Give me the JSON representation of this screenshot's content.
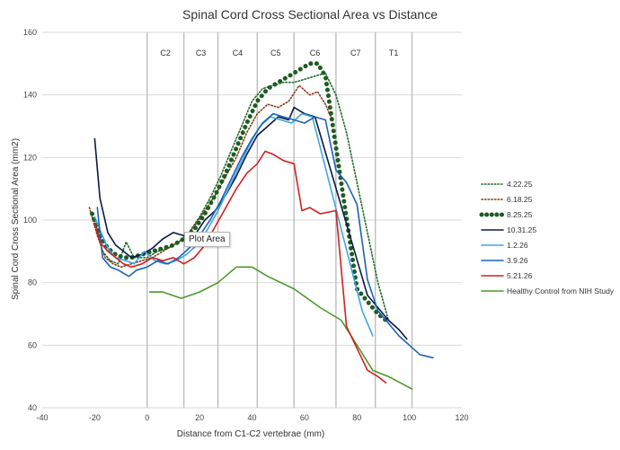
{
  "chart_data": {
    "type": "line",
    "title": "Spinal Cord Cross Sectional Area vs Distance",
    "xlabel": "Distance from C1-C2 vertebrae (mm)",
    "ylabel": "Spinal Cord Cross Sectional Area (mm2)",
    "xlim": [
      -40,
      120
    ],
    "ylim": [
      40,
      160
    ],
    "xticks": [
      -40,
      -20,
      0,
      20,
      40,
      60,
      80,
      100,
      120
    ],
    "yticks": [
      40,
      60,
      80,
      100,
      120,
      140,
      160
    ],
    "legend_position": "right",
    "regions": [
      {
        "label": "C2",
        "start": 0,
        "end": 14
      },
      {
        "label": "C3",
        "start": 14,
        "end": 27
      },
      {
        "label": "C4",
        "start": 27,
        "end": 42
      },
      {
        "label": "C5",
        "start": 42,
        "end": 56
      },
      {
        "label": "C6",
        "start": 56,
        "end": 72
      },
      {
        "label": "C7",
        "start": 72,
        "end": 87
      },
      {
        "label": "T1",
        "start": 87,
        "end": 101
      }
    ],
    "series": [
      {
        "name": "4.22.25",
        "color": "#1f6b2a",
        "style": "dotted",
        "points": [
          [
            -20,
            100
          ],
          [
            -17,
            90
          ],
          [
            -14,
            87
          ],
          [
            -11,
            86
          ],
          [
            -8,
            93
          ],
          [
            -5,
            88
          ],
          [
            0,
            88
          ],
          [
            4,
            90
          ],
          [
            8,
            91
          ],
          [
            12,
            93
          ],
          [
            16,
            96
          ],
          [
            20,
            101
          ],
          [
            24,
            107
          ],
          [
            28,
            114
          ],
          [
            32,
            122
          ],
          [
            36,
            130
          ],
          [
            40,
            138
          ],
          [
            44,
            142
          ],
          [
            48,
            143
          ],
          [
            52,
            144
          ],
          [
            56,
            144
          ],
          [
            60,
            145
          ],
          [
            64,
            146
          ],
          [
            68,
            147
          ],
          [
            72,
            140
          ],
          [
            76,
            128
          ],
          [
            80,
            112
          ],
          [
            84,
            96
          ],
          [
            88,
            80
          ],
          [
            92,
            68
          ]
        ]
      },
      {
        "name": "6.18.25",
        "color": "#8b3a1a",
        "style": "dotted",
        "points": [
          [
            -22,
            104
          ],
          [
            -19,
            95
          ],
          [
            -16,
            88
          ],
          [
            -13,
            86
          ],
          [
            -10,
            85
          ],
          [
            -6,
            86
          ],
          [
            -2,
            87
          ],
          [
            2,
            88
          ],
          [
            6,
            90
          ],
          [
            10,
            92
          ],
          [
            14,
            94
          ],
          [
            18,
            98
          ],
          [
            22,
            103
          ],
          [
            26,
            108
          ],
          [
            30,
            114
          ],
          [
            34,
            120
          ],
          [
            38,
            128
          ],
          [
            42,
            134
          ],
          [
            46,
            137
          ],
          [
            50,
            136
          ],
          [
            54,
            138
          ],
          [
            58,
            143
          ],
          [
            62,
            140
          ],
          [
            65,
            141
          ],
          [
            68,
            137
          ],
          [
            70,
            133
          ]
        ]
      },
      {
        "name": "8.25.25",
        "color": "#1e5c23",
        "style": "bigdots",
        "points": [
          [
            -21,
            102
          ],
          [
            -18,
            95
          ],
          [
            -15,
            91
          ],
          [
            -12,
            89
          ],
          [
            -9,
            88
          ],
          [
            -6,
            88
          ],
          [
            -2,
            89
          ],
          [
            2,
            90
          ],
          [
            6,
            91
          ],
          [
            10,
            92
          ],
          [
            14,
            94
          ],
          [
            18,
            97
          ],
          [
            22,
            102
          ],
          [
            26,
            108
          ],
          [
            30,
            115
          ],
          [
            34,
            123
          ],
          [
            38,
            131
          ],
          [
            42,
            138
          ],
          [
            46,
            142
          ],
          [
            50,
            144
          ],
          [
            54,
            146
          ],
          [
            58,
            148
          ],
          [
            62,
            150
          ],
          [
            65,
            150
          ],
          [
            68,
            146
          ],
          [
            80,
            78
          ],
          [
            84,
            74
          ],
          [
            88,
            70
          ],
          [
            91,
            68
          ]
        ]
      },
      {
        "name": "10.31.25",
        "color": "#0d1a45",
        "style": "solid",
        "points": [
          [
            -20,
            126
          ],
          [
            -18,
            107
          ],
          [
            -15,
            96
          ],
          [
            -12,
            92
          ],
          [
            -9,
            90
          ],
          [
            -6,
            88
          ],
          [
            -2,
            89
          ],
          [
            2,
            91
          ],
          [
            6,
            94
          ],
          [
            10,
            96
          ],
          [
            14,
            95
          ],
          [
            18,
            95
          ],
          [
            22,
            100
          ],
          [
            26,
            103
          ],
          [
            30,
            108
          ],
          [
            34,
            114
          ],
          [
            38,
            121
          ],
          [
            42,
            127
          ],
          [
            46,
            130
          ],
          [
            50,
            133
          ],
          [
            54,
            132
          ],
          [
            56,
            136
          ],
          [
            60,
            134
          ],
          [
            64,
            133
          ],
          [
            84,
            76
          ],
          [
            88,
            72
          ],
          [
            92,
            68
          ],
          [
            96,
            65
          ],
          [
            99,
            62
          ]
        ]
      },
      {
        "name": "1.2.26",
        "color": "#3fa6e0",
        "style": "solid",
        "points": [
          [
            -20,
            101
          ],
          [
            -18,
            97
          ],
          [
            -15,
            91
          ],
          [
            -12,
            88
          ],
          [
            -8,
            87
          ],
          [
            -5,
            86
          ],
          [
            -1,
            90
          ],
          [
            3,
            87
          ],
          [
            7,
            86
          ],
          [
            11,
            87
          ],
          [
            15,
            89
          ],
          [
            19,
            92
          ],
          [
            23,
            97
          ],
          [
            27,
            103
          ],
          [
            31,
            110
          ],
          [
            35,
            117
          ],
          [
            39,
            124
          ],
          [
            43,
            130
          ],
          [
            47,
            133
          ],
          [
            51,
            132
          ],
          [
            55,
            131
          ],
          [
            59,
            134
          ],
          [
            63,
            133
          ],
          [
            82,
            71
          ],
          [
            86,
            63
          ]
        ]
      },
      {
        "name": "3.9.26",
        "color": "#1d63b8",
        "style": "solid",
        "points": [
          [
            -19,
            104
          ],
          [
            -17,
            88
          ],
          [
            -14,
            85
          ],
          [
            -11,
            84
          ],
          [
            -7,
            82
          ],
          [
            -4,
            84
          ],
          [
            0,
            85
          ],
          [
            4,
            87
          ],
          [
            8,
            86
          ],
          [
            12,
            88
          ],
          [
            16,
            91
          ],
          [
            20,
            95
          ],
          [
            24,
            100
          ],
          [
            28,
            106
          ],
          [
            32,
            113
          ],
          [
            36,
            120
          ],
          [
            40,
            126
          ],
          [
            44,
            131
          ],
          [
            48,
            134
          ],
          [
            52,
            133
          ],
          [
            56,
            132
          ],
          [
            60,
            131
          ],
          [
            64,
            133
          ],
          [
            68,
            132
          ],
          [
            72,
            116
          ],
          [
            76,
            112
          ],
          [
            80,
            105
          ],
          [
            84,
            81
          ],
          [
            88,
            71
          ],
          [
            92,
            67
          ],
          [
            96,
            63
          ],
          [
            100,
            60
          ],
          [
            104,
            57
          ],
          [
            109,
            56
          ]
        ]
      },
      {
        "name": "5.21.26",
        "color": "#d42020",
        "style": "solid",
        "points": [
          [
            -20,
            99
          ],
          [
            -18,
            93
          ],
          [
            -15,
            90
          ],
          [
            -12,
            88
          ],
          [
            -9,
            86
          ],
          [
            -6,
            85
          ],
          [
            -2,
            86
          ],
          [
            2,
            88
          ],
          [
            6,
            87
          ],
          [
            10,
            88
          ],
          [
            14,
            86
          ],
          [
            18,
            88
          ],
          [
            22,
            92
          ],
          [
            26,
            98
          ],
          [
            30,
            104
          ],
          [
            34,
            110
          ],
          [
            38,
            115
          ],
          [
            42,
            118
          ],
          [
            45,
            122
          ],
          [
            48,
            121
          ],
          [
            52,
            119
          ],
          [
            56,
            118
          ],
          [
            59,
            103
          ],
          [
            62,
            104
          ],
          [
            66,
            102
          ],
          [
            72,
            103
          ],
          [
            76,
            66
          ],
          [
            80,
            59
          ],
          [
            84,
            52
          ],
          [
            88,
            50
          ],
          [
            91,
            48
          ]
        ]
      },
      {
        "name": "Healthy Control from NIH Study",
        "color": "#4c9a2a",
        "style": "solid",
        "points": [
          [
            1,
            77
          ],
          [
            6,
            77
          ],
          [
            13,
            75
          ],
          [
            20,
            77
          ],
          [
            27,
            80
          ],
          [
            34,
            85
          ],
          [
            40,
            85
          ],
          [
            46,
            82
          ],
          [
            56,
            78
          ],
          [
            66,
            72
          ],
          [
            74,
            68
          ],
          [
            80,
            60
          ],
          [
            86,
            52
          ],
          [
            92,
            50
          ],
          [
            101,
            46
          ]
        ]
      }
    ]
  },
  "tooltip": {
    "label": "Plot Area"
  }
}
